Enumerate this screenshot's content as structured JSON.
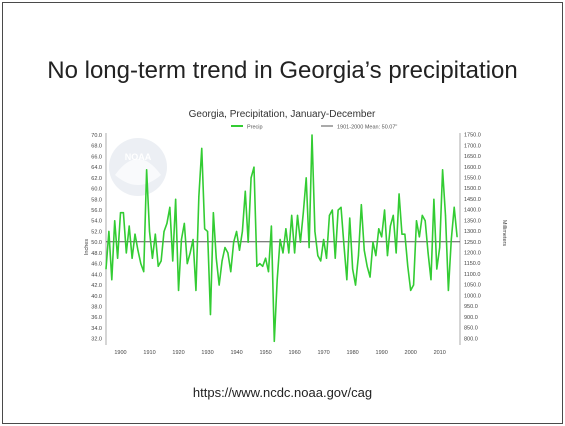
{
  "slide": {
    "title": "No long-term trend in Georgia’s precipitation",
    "source": "https://www.ncdc.noaa.gov/cag"
  },
  "logo": {
    "text": "NOAA"
  },
  "colors": {
    "series": "#33cc33",
    "mean_line": "#555555",
    "axis": "#888888"
  },
  "chart_data": {
    "type": "line",
    "title": "Georgia, Precipitation, January-December",
    "ylabel": "Inches",
    "y2label": "Millimeters",
    "legend": [
      {
        "name": "Precip",
        "color": "#33cc33"
      },
      {
        "name": "1901-2000 Mean: 50.07\"",
        "color": "#555555"
      }
    ],
    "legend_placement": "top",
    "ylim": [
      31.0,
      70.0
    ],
    "xlim": [
      1895,
      2017
    ],
    "x_ticks": [
      "1900",
      "1910",
      "1920",
      "1930",
      "1940",
      "1950",
      "1960",
      "1970",
      "1980",
      "1990",
      "2000",
      "2010"
    ],
    "y_ticks": [
      "70.0",
      "68.0",
      "66.0",
      "64.0",
      "62.0",
      "60.0",
      "58.0",
      "56.0",
      "54.0",
      "52.0",
      "50.0",
      "48.0",
      "46.0",
      "44.0",
      "42.0",
      "40.0",
      "38.0",
      "36.0",
      "34.0",
      "32.0"
    ],
    "y2_ticks": [
      "1750.0",
      "1700.0",
      "1650.0",
      "1600.0",
      "1550.0",
      "1500.0",
      "1450.0",
      "1400.0",
      "1350.0",
      "1300.0",
      "1250.0",
      "1200.0",
      "1150.0",
      "1100.0",
      "1050.0",
      "1000.0",
      "950.0",
      "900.0",
      "850.0",
      "800.0"
    ],
    "mean": 50.07,
    "grid": false,
    "x": [
      1895,
      1896,
      1897,
      1898,
      1899,
      1900,
      1901,
      1902,
      1903,
      1904,
      1905,
      1906,
      1907,
      1908,
      1909,
      1910,
      1911,
      1912,
      1913,
      1914,
      1915,
      1916,
      1917,
      1918,
      1919,
      1920,
      1921,
      1922,
      1923,
      1924,
      1925,
      1926,
      1927,
      1928,
      1929,
      1930,
      1931,
      1932,
      1933,
      1934,
      1935,
      1936,
      1937,
      1938,
      1939,
      1940,
      1941,
      1942,
      1943,
      1944,
      1945,
      1946,
      1947,
      1948,
      1949,
      1950,
      1951,
      1952,
      1953,
      1954,
      1955,
      1956,
      1957,
      1958,
      1959,
      1960,
      1961,
      1962,
      1963,
      1964,
      1965,
      1966,
      1967,
      1968,
      1969,
      1970,
      1971,
      1972,
      1973,
      1974,
      1975,
      1976,
      1977,
      1978,
      1979,
      1980,
      1981,
      1982,
      1983,
      1984,
      1985,
      1986,
      1987,
      1988,
      1989,
      1990,
      1991,
      1992,
      1993,
      1994,
      1995,
      1996,
      1997,
      1998,
      1999,
      2000,
      2001,
      2002,
      2003,
      2004,
      2005,
      2006,
      2007,
      2008,
      2009,
      2010,
      2011,
      2012,
      2013,
      2014,
      2015,
      2016
    ],
    "series": [
      {
        "name": "Precip",
        "values": [
          45.0,
          52.0,
          43.0,
          54.0,
          47.0,
          55.5,
          55.5,
          48.0,
          53.0,
          47.0,
          51.5,
          48.5,
          46.0,
          44.5,
          63.5,
          52.0,
          47.0,
          51.5,
          45.5,
          46.5,
          52.0,
          53.5,
          56.5,
          46.5,
          58.0,
          41.0,
          50.5,
          53.5,
          46.0,
          48.0,
          50.5,
          41.0,
          58.5,
          67.5,
          52.5,
          52.0,
          36.5,
          55.5,
          47.0,
          42.0,
          46.5,
          49.0,
          48.0,
          44.5,
          50.0,
          52.0,
          48.5,
          52.0,
          59.5,
          50.0,
          62.0,
          64.0,
          45.5,
          46.0,
          45.5,
          47.0,
          44.5,
          53.0,
          31.5,
          43.0,
          50.5,
          48.0,
          52.5,
          48.0,
          55.0,
          48.0,
          55.0,
          50.0,
          55.5,
          62.0,
          49.0,
          70.0,
          52.0,
          47.5,
          46.5,
          50.5,
          47.0,
          55.0,
          56.0,
          47.0,
          56.0,
          56.5,
          49.5,
          43.0,
          54.5,
          45.0,
          42.0,
          47.5,
          57.0,
          48.5,
          45.5,
          43.5,
          50.0,
          47.5,
          52.5,
          51.0,
          56.0,
          47.5,
          53.0,
          55.0,
          48.0,
          59.0,
          51.5,
          51.5,
          45.5,
          41.0,
          42.0,
          54.0,
          51.0,
          55.0,
          54.0,
          48.0,
          43.0,
          58.0,
          45.0,
          49.0,
          63.5,
          55.0,
          41.0,
          50.5,
          56.5,
          51.0
        ]
      }
    ]
  }
}
